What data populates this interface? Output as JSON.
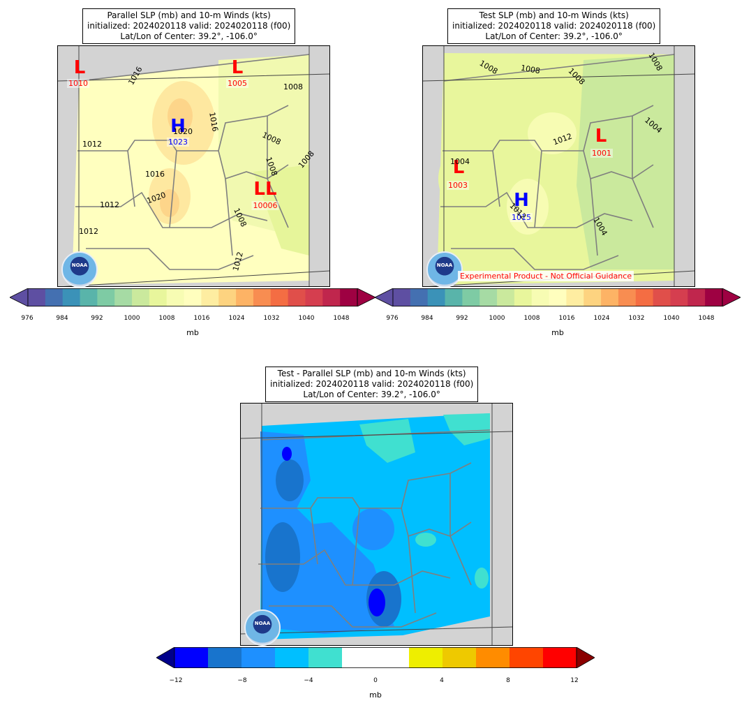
{
  "panels": {
    "parallel": {
      "title_line1": "Parallel SLP (mb) and 10-m Winds (kts)",
      "title_line2": "initialized: 2024020118 valid: 2024020118 (f00)",
      "title_line3": "Lat/Lon of Center: 39.2°, -106.0°",
      "markers": [
        {
          "letter": "L",
          "value": "1010",
          "type": "low"
        },
        {
          "letter": "L",
          "value": "1005",
          "type": "low"
        },
        {
          "letter": "H",
          "value": "1023",
          "type": "high"
        },
        {
          "letter": "LL",
          "value": "10006",
          "type": "low"
        }
      ],
      "contour_labels": [
        "1016",
        "1012",
        "1016",
        "1020",
        "1016",
        "1012",
        "1012",
        "1008",
        "1008",
        "1008",
        "1008",
        "1008",
        "1012",
        "1020"
      ]
    },
    "test": {
      "title_line1": "Test SLP (mb) and 10-m Winds (kts)",
      "title_line2": "initialized: 2024020118 valid: 2024020118 (f00)",
      "title_line3": "Lat/Lon of Center: 39.2°, -106.0°",
      "markers": [
        {
          "letter": "L",
          "value": "1001",
          "type": "low"
        },
        {
          "letter": "L",
          "value": "1003",
          "type": "low"
        },
        {
          "letter": "H",
          "value": "1015",
          "type": "high"
        }
      ],
      "contour_labels": [
        "1008",
        "1008",
        "1008",
        "1008",
        "1004",
        "1012",
        "1004",
        "1012",
        "1004"
      ],
      "disclaimer": "Experimental Product - Not Official Guidance"
    },
    "diff": {
      "title_line1": "Test - Parallel SLP (mb) and 10-m Winds (kts)",
      "title_line2": "initialized: 2024020118 valid: 2024020118 (f00)",
      "title_line3": "Lat/Lon of Center: 39.2°, -106.0°"
    }
  },
  "logo_text": "NOAA",
  "colorbars": {
    "slp": {
      "ticks": [
        "976",
        "984",
        "992",
        "1000",
        "1008",
        "1016",
        "1024",
        "1032",
        "1040",
        "1048"
      ],
      "unit": "mb",
      "colors": [
        "#5e4fa2",
        "#4470b1",
        "#3b92b8",
        "#59b4aa",
        "#7ecba4",
        "#a6dba4",
        "#cae99d",
        "#e8f69c",
        "#f7fcb3",
        "#fffebe",
        "#feeda1",
        "#fdd380",
        "#fdb365",
        "#f88d51",
        "#f46d43",
        "#e04f4a",
        "#d53e4f",
        "#c0264d",
        "#9e0142"
      ],
      "under_color": "#5e4fa2",
      "over_color": "#9e0142"
    },
    "diff": {
      "ticks": [
        "−12",
        "−8",
        "−4",
        "0",
        "4",
        "8",
        "12"
      ],
      "unit": "mb",
      "colors": [
        "#0000ff",
        "#1874cd",
        "#1e90ff",
        "#00bfff",
        "#40e0d0",
        "#ffffff",
        "#ffffff",
        "#eeee00",
        "#eec900",
        "#ff8c00",
        "#ff4500",
        "#ff0000"
      ],
      "under_color": "#00008b",
      "over_color": "#8b0000"
    }
  }
}
